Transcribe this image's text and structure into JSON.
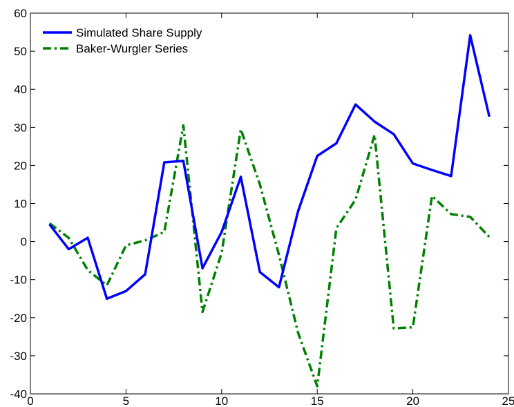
{
  "chart_data": {
    "type": "line",
    "title": "",
    "xlabel": "",
    "ylabel": "",
    "xlim": [
      0,
      25
    ],
    "ylim": [
      -40,
      60
    ],
    "xticks": [
      0,
      5,
      10,
      15,
      20,
      25
    ],
    "yticks": [
      -40,
      -30,
      -20,
      -10,
      0,
      10,
      20,
      30,
      40,
      50,
      60
    ],
    "grid": false,
    "legend_position": "top-left",
    "x": [
      1,
      2,
      3,
      4,
      5,
      6,
      7,
      8,
      9,
      10,
      11,
      12,
      13,
      14,
      15,
      16,
      17,
      18,
      19,
      20,
      21,
      22,
      23,
      24
    ],
    "series": [
      {
        "name": "Simulated Share Supply",
        "color": "#0000ff",
        "style": "solid",
        "values": [
          4.5,
          -2,
          1,
          -15,
          -13,
          -8.6,
          20.8,
          21.2,
          -7,
          2.5,
          17,
          -8,
          -12,
          8,
          22.5,
          25.8,
          36,
          31.5,
          28.2,
          20.5,
          18.8,
          17.2,
          54.2,
          32.8
        ]
      },
      {
        "name": "Baker-Wurgler Series",
        "color": "#008000",
        "style": "dashdot",
        "values": [
          4.8,
          1,
          -7.5,
          -11.5,
          -1,
          0.3,
          2.5,
          30.5,
          -18.5,
          -3,
          29.5,
          15,
          -3.5,
          -24,
          -38,
          3.5,
          11,
          28,
          -22.8,
          -22.5,
          12,
          7.2,
          6.5,
          1.2
        ]
      }
    ]
  }
}
